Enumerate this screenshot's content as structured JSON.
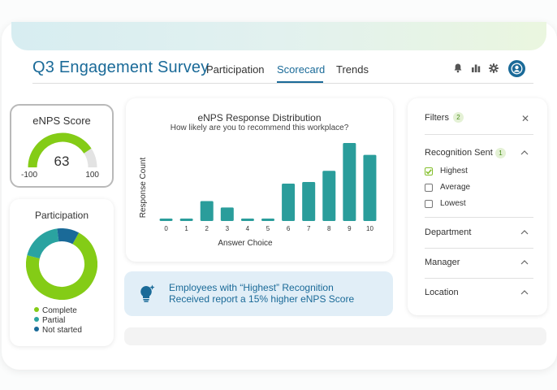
{
  "app": {
    "title": "Q3 Engagement Survey",
    "tabs": [
      {
        "label": "Participation",
        "active": false
      },
      {
        "label": "Scorecard",
        "active": true
      },
      {
        "label": "Trends",
        "active": false
      }
    ],
    "header_icons": [
      "bell-icon",
      "bar-chart-icon",
      "gear-icon",
      "user-avatar-icon"
    ]
  },
  "colors": {
    "brand_blue": "#1a6a98",
    "bar_teal": "#2a9d9b",
    "green": "#84cc16",
    "teal": "#2aa3a0",
    "dark_blue": "#1a6a98",
    "gauge_track": "#e3e3e3"
  },
  "enps": {
    "title": "eNPS Score",
    "value": "63",
    "min": "-100",
    "max": "100",
    "score_number": 63
  },
  "participation": {
    "title": "Participation",
    "legend": [
      {
        "label": "Complete",
        "color": "#84cc16"
      },
      {
        "label": "Partial",
        "color": "#2aa3a0"
      },
      {
        "label": "Not started",
        "color": "#1a6a98"
      }
    ],
    "donut_fractions": [
      0.71,
      0.19,
      0.1
    ]
  },
  "chart_data": {
    "type": "bar",
    "title": "eNPS Response Distribution",
    "subtitle": "How likely are you to recommend this workplace?",
    "xlabel": "Answer Choice",
    "ylabel": "Response Count",
    "categories": [
      "0",
      "1",
      "2",
      "3",
      "4",
      "5",
      "6",
      "7",
      "8",
      "9",
      "10"
    ],
    "values": [
      3,
      3,
      25,
      17,
      3,
      3,
      47,
      49,
      63,
      98,
      83
    ],
    "ylim": [
      0,
      100
    ],
    "grid": false
  },
  "insight": {
    "line1": "Employees with “Highest” Recognition",
    "line2": "Received report a 15% higher eNPS Score",
    "icon": "lightbulb-sparkle-icon"
  },
  "filters": {
    "title": "Filters",
    "count": "2",
    "close_icon": "close-icon",
    "sections": [
      {
        "label": "Recognition Sent",
        "count": "1",
        "expanded": true,
        "options": [
          {
            "label": "Highest",
            "checked": true
          },
          {
            "label": "Average",
            "checked": false
          },
          {
            "label": "Lowest",
            "checked": false
          }
        ]
      },
      {
        "label": "Department",
        "expanded": false
      },
      {
        "label": "Manager",
        "expanded": false
      },
      {
        "label": "Location",
        "expanded": false
      }
    ]
  }
}
